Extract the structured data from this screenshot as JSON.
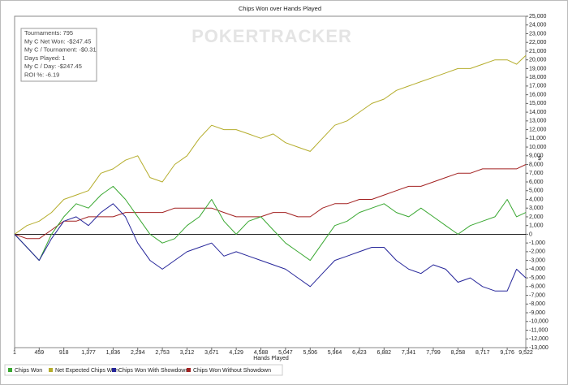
{
  "chart_data": {
    "type": "line",
    "title": "Chips Won over Hands Played",
    "x_label": "Hands Played",
    "y_label": "$",
    "watermark": "POKERTRACKER",
    "stats": [
      "Tournaments: 795",
      "My C Net Won: -$247.45",
      "My C / Tournament: -$0.31",
      "Days Played: 1",
      "My C / Day: -$247.45",
      "ROI %: -6.19"
    ],
    "x": [
      1,
      230,
      459,
      689,
      918,
      1148,
      1377,
      1607,
      1836,
      2065,
      2294,
      2524,
      2753,
      2983,
      3212,
      3442,
      3671,
      3900,
      4129,
      4359,
      4588,
      4818,
      5047,
      5277,
      5506,
      5735,
      5964,
      6194,
      6423,
      6653,
      6882,
      7112,
      7341,
      7570,
      7799,
      8029,
      8258,
      8488,
      8717,
      8947,
      9176,
      9349,
      9522
    ],
    "series": [
      {
        "name": "Chips Won",
        "color": "#3aa832",
        "values": [
          0,
          -1500,
          -3000,
          0,
          2000,
          3500,
          3000,
          4500,
          5500,
          4000,
          2000,
          0,
          -1000,
          -500,
          1000,
          2000,
          4000,
          1500,
          0,
          1500,
          2000,
          500,
          -1000,
          -2000,
          -3000,
          -1000,
          1000,
          1500,
          2500,
          3000,
          3500,
          2500,
          2000,
          3000,
          2000,
          1000,
          0,
          1000,
          1500,
          2000,
          4000,
          2000,
          2500
        ]
      },
      {
        "name": "Net Expected Chips Won",
        "color": "#b5ad2c",
        "values": [
          0,
          1000,
          1500,
          2500,
          4000,
          4500,
          5000,
          7000,
          7500,
          8500,
          9000,
          6500,
          6000,
          8000,
          9000,
          11000,
          12500,
          12000,
          12000,
          11500,
          11000,
          11500,
          10500,
          10000,
          9500,
          11000,
          12500,
          13000,
          14000,
          15000,
          15500,
          16500,
          17000,
          17500,
          18000,
          18500,
          19000,
          19000,
          19500,
          20000,
          20000,
          19500,
          20500
        ]
      },
      {
        "name": "Chips Won With Showdown",
        "color": "#26269a",
        "values": [
          0,
          -1500,
          -3000,
          -500,
          1500,
          2000,
          1000,
          2500,
          3500,
          2000,
          -1000,
          -3000,
          -4000,
          -3000,
          -2000,
          -1500,
          -1000,
          -2500,
          -2000,
          -2500,
          -3000,
          -3500,
          -4000,
          -5000,
          -6000,
          -4500,
          -3000,
          -2500,
          -2000,
          -1500,
          -1500,
          -3000,
          -4000,
          -4500,
          -3500,
          -4000,
          -5500,
          -5000,
          -6000,
          -6500,
          -6500,
          -4000,
          -5000
        ]
      },
      {
        "name": "Chips Won Without Showdown",
        "color": "#a32222",
        "values": [
          0,
          -500,
          -500,
          500,
          1500,
          1500,
          2000,
          2000,
          2000,
          2500,
          2500,
          2500,
          2500,
          3000,
          3000,
          3000,
          3000,
          2500,
          2000,
          2000,
          2000,
          2500,
          2500,
          2000,
          2000,
          3000,
          3500,
          3500,
          4000,
          4000,
          4500,
          5000,
          5500,
          5500,
          6000,
          6500,
          7000,
          7000,
          7500,
          7500,
          7500,
          7500,
          8000
        ]
      }
    ],
    "xlim": [
      1,
      9522
    ],
    "xticks": [
      1,
      459,
      918,
      {
        "value": 1377,
        "label": "1,377"
      },
      {
        "value": 1836,
        "label": "1,836"
      },
      {
        "value": 2294,
        "label": "2,294"
      },
      {
        "value": 2753,
        "label": "2,753"
      },
      {
        "value": 3212,
        "label": "3,212"
      },
      {
        "value": 3671,
        "label": "3,671"
      },
      {
        "value": 4129,
        "label": "4,129"
      },
      {
        "value": 4588,
        "label": "4,588"
      },
      {
        "value": 5047,
        "label": "5,047"
      },
      {
        "value": 5506,
        "label": "5,506"
      },
      {
        "value": 5964,
        "label": "5,964"
      },
      {
        "value": 6423,
        "label": "6,423"
      },
      {
        "value": 6882,
        "label": "6,882"
      },
      {
        "value": 7341,
        "label": "7,341"
      },
      {
        "value": 7799,
        "label": "7,799"
      },
      {
        "value": 8258,
        "label": "8,258"
      },
      {
        "value": 8717,
        "label": "8,717"
      },
      {
        "value": 9176,
        "label": "9,176"
      },
      {
        "value": 9522,
        "label": "9,522"
      }
    ],
    "ylim": [
      -13000,
      25000
    ],
    "yticks": [
      {
        "value": 25000,
        "label": "25,000"
      },
      {
        "value": 24000,
        "label": "24,000"
      },
      {
        "value": 23000,
        "label": "23,000"
      },
      {
        "value": 22000,
        "label": "22,000"
      },
      {
        "value": 21000,
        "label": "21,000"
      },
      {
        "value": 20000,
        "label": "20,000"
      },
      {
        "value": 19000,
        "label": "19,000"
      },
      {
        "value": 18000,
        "label": "18,000"
      },
      {
        "value": 17000,
        "label": "17,000"
      },
      {
        "value": 16000,
        "label": "16,000"
      },
      {
        "value": 15000,
        "label": "15,000"
      },
      {
        "value": 14000,
        "label": "14,000"
      },
      {
        "value": 13000,
        "label": "13,000"
      },
      {
        "value": 12000,
        "label": "12,000"
      },
      {
        "value": 11000,
        "label": "11,000"
      },
      {
        "value": 10000,
        "label": "10,000"
      },
      {
        "value": 9000,
        "label": "9,000"
      },
      {
        "value": 8000,
        "label": "8,000"
      },
      {
        "value": 7000,
        "label": "7,000"
      },
      {
        "value": 6000,
        "label": "6,000"
      },
      {
        "value": 5000,
        "label": "5,000"
      },
      {
        "value": 4000,
        "label": "4,000"
      },
      {
        "value": 3000,
        "label": "3,000"
      },
      {
        "value": 2000,
        "label": "2,000"
      },
      {
        "value": 1000,
        "label": "1,000"
      },
      0,
      {
        "value": -1000,
        "label": "-1,000"
      },
      {
        "value": -2000,
        "label": "-2,000"
      },
      {
        "value": -3000,
        "label": "-3,000"
      },
      {
        "value": -4000,
        "label": "-4,000"
      },
      {
        "value": -5000,
        "label": "-5,000"
      },
      {
        "value": -6000,
        "label": "-6,000"
      },
      {
        "value": -7000,
        "label": "-7,000"
      },
      {
        "value": -8000,
        "label": "-8,000"
      },
      {
        "value": -9000,
        "label": "-9,000"
      },
      {
        "value": -10000,
        "label": "-10,000"
      },
      {
        "value": -11000,
        "label": "-11,000"
      },
      {
        "value": -12000,
        "label": "-12,000"
      },
      {
        "value": -13000,
        "label": "-13,000"
      }
    ],
    "legend": "bottom-left",
    "zero_line": true
  }
}
